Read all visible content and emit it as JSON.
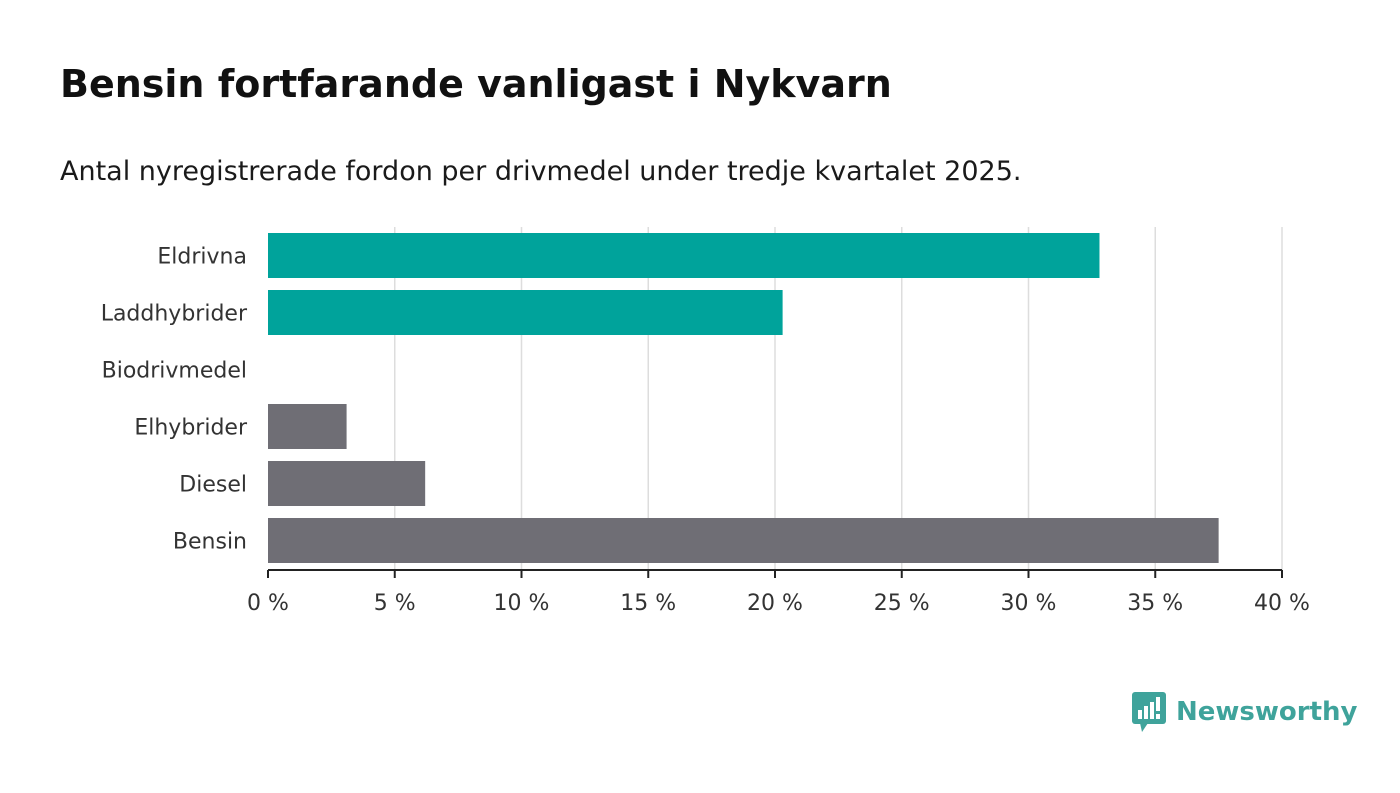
{
  "header": {
    "title": "Bensin fortfarande vanligast i Nykvarn",
    "subtitle": "Antal nyregistrerade fordon per drivmedel under tredje kvartalet 2025."
  },
  "logo": {
    "text": "Newsworthy",
    "icon": "newsworthy-logo-icon",
    "color": "#3fa39b"
  },
  "chart_data": {
    "type": "bar",
    "orientation": "horizontal",
    "categories": [
      "Eldrivna",
      "Laddhybrider",
      "Biodrivmedel",
      "Elhybrider",
      "Diesel",
      "Bensin"
    ],
    "values": [
      32.8,
      20.3,
      0,
      3.1,
      6.2,
      37.5
    ],
    "colors": [
      "#00a39b",
      "#00a39b",
      "#00a39b",
      "#6f6e75",
      "#6f6e75",
      "#6f6e75"
    ],
    "xlim": [
      0,
      40
    ],
    "xticks": [
      0,
      5,
      10,
      15,
      20,
      25,
      30,
      35,
      40
    ],
    "tick_suffix": " %",
    "grid": "vertical",
    "title": "",
    "xlabel": "",
    "ylabel": ""
  }
}
